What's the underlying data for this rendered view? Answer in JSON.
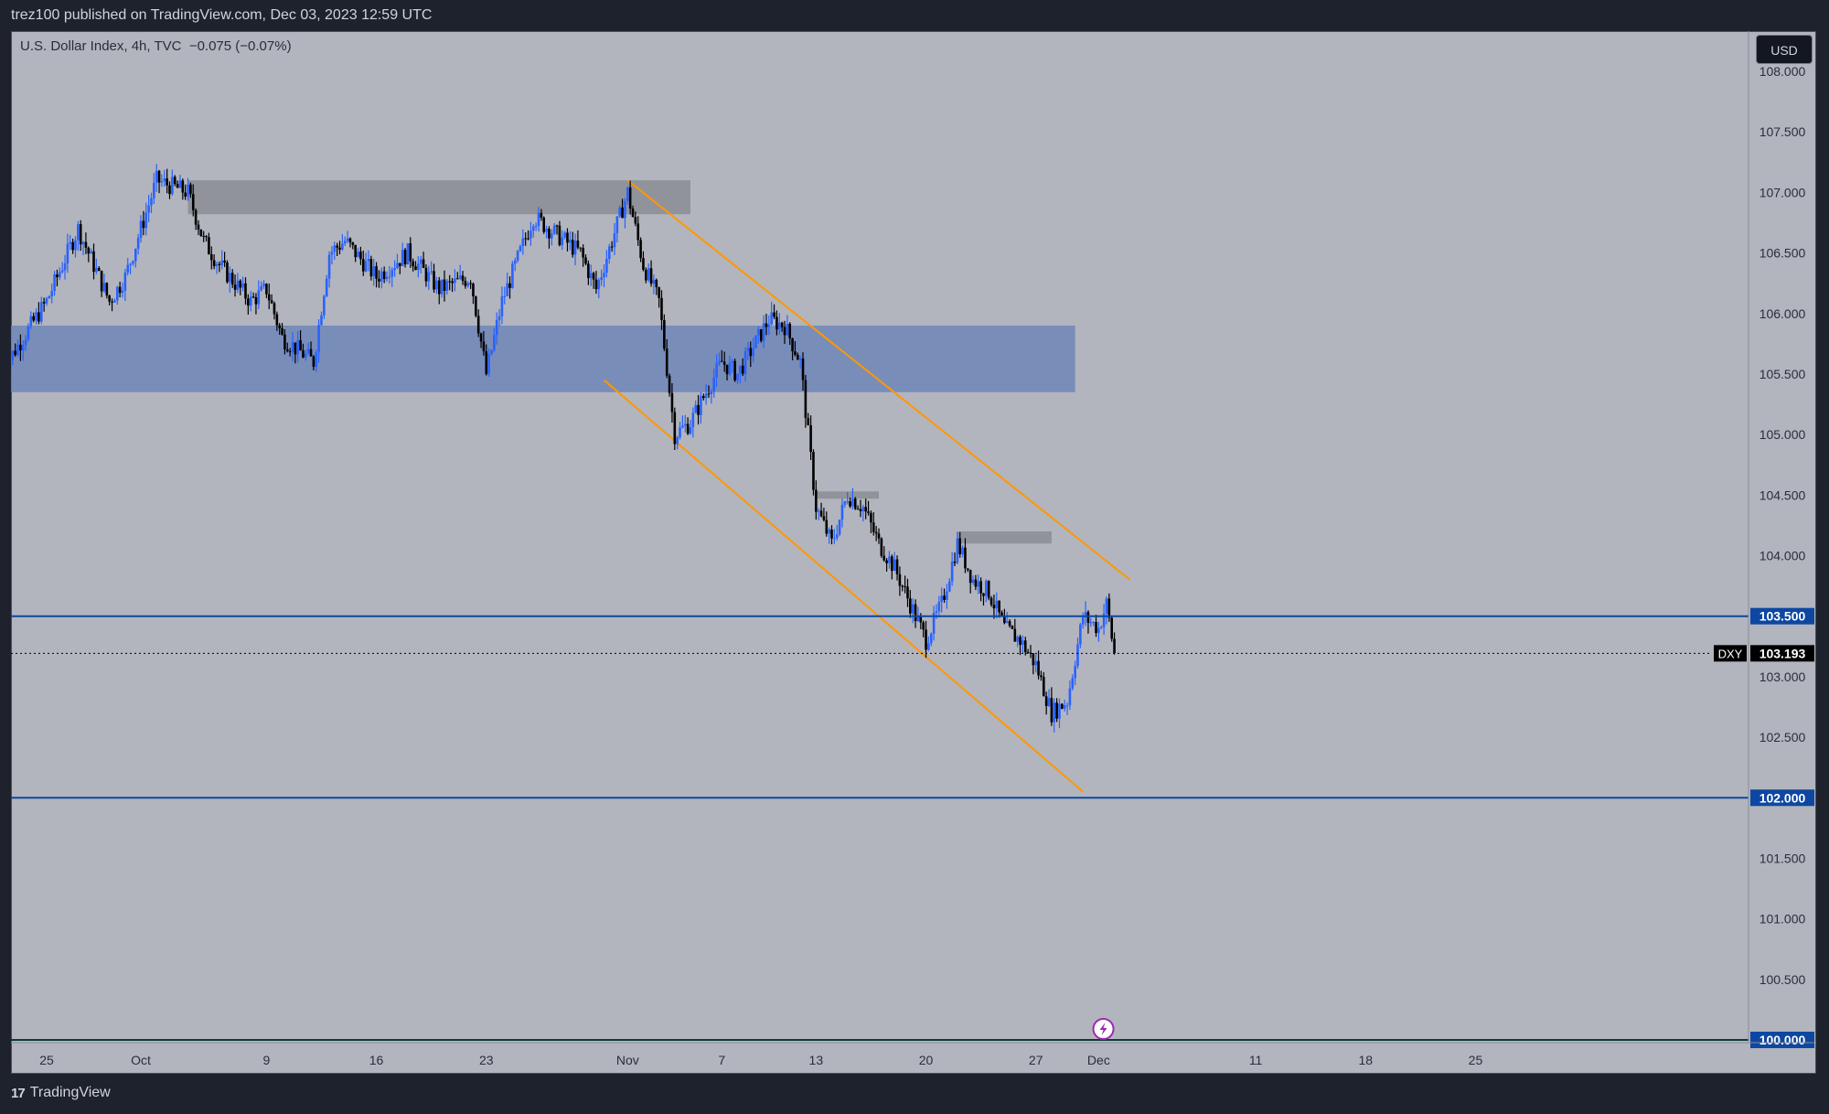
{
  "header": {
    "published_text": "trez100 published on TradingView.com, Dec 03, 2023 12:59 UTC"
  },
  "legend": {
    "symbol_line": "U.S. Dollar Index, 4h, TVC",
    "change": "−0.075 (−0.07%)"
  },
  "currency_button": "USD",
  "footer": {
    "brand": "TradingView"
  },
  "colors": {
    "background": "#b2b5be",
    "up_candle": "#2962ff",
    "down_candle": "#000000",
    "horizontal_lines": "#0d47a1",
    "channel": "#ff9800",
    "zone_blue": "#6f86b8",
    "zone_gray": "#8d8f97"
  },
  "chart_data": {
    "type": "candlestick",
    "symbol": "DXY",
    "interval": "4h",
    "ylim": [
      100.0,
      108.0
    ],
    "y_ticks": [
      "108.000",
      "107.500",
      "107.000",
      "106.500",
      "106.000",
      "105.500",
      "105.000",
      "104.500",
      "104.000",
      "103.500",
      "103.000",
      "102.500",
      "102.000",
      "101.500",
      "101.000",
      "100.500",
      "100.000"
    ],
    "x_ticks": [
      {
        "label": "25",
        "day": -6
      },
      {
        "label": "Oct",
        "day": 0
      },
      {
        "label": "9",
        "day": 8
      },
      {
        "label": "16",
        "day": 15
      },
      {
        "label": "23",
        "day": 22
      },
      {
        "label": "Nov",
        "day": 31
      },
      {
        "label": "7",
        "day": 37
      },
      {
        "label": "13",
        "day": 43
      },
      {
        "label": "20",
        "day": 50
      },
      {
        "label": "27",
        "day": 57
      },
      {
        "label": "Dec",
        "day": 61
      },
      {
        "label": "11",
        "day": 71
      },
      {
        "label": "18",
        "day": 78
      },
      {
        "label": "25",
        "day": 85
      }
    ],
    "price_path": [
      {
        "day": -9,
        "price": 105.5
      },
      {
        "day": -6,
        "price": 106.1
      },
      {
        "day": -4,
        "price": 106.7
      },
      {
        "day": -2,
        "price": 106.1
      },
      {
        "day": -1,
        "price": 106.3
      },
      {
        "day": 1,
        "price": 107.1
      },
      {
        "day": 3,
        "price": 107.0
      },
      {
        "day": 4,
        "price": 106.6
      },
      {
        "day": 5,
        "price": 106.4
      },
      {
        "day": 7,
        "price": 106.1
      },
      {
        "day": 8,
        "price": 106.2
      },
      {
        "day": 9,
        "price": 105.8
      },
      {
        "day": 11,
        "price": 105.6
      },
      {
        "day": 12,
        "price": 106.5
      },
      {
        "day": 13,
        "price": 106.6
      },
      {
        "day": 15,
        "price": 106.3
      },
      {
        "day": 17,
        "price": 106.5
      },
      {
        "day": 19,
        "price": 106.2
      },
      {
        "day": 21,
        "price": 106.3
      },
      {
        "day": 22,
        "price": 105.5
      },
      {
        "day": 23,
        "price": 106.1
      },
      {
        "day": 25,
        "price": 106.8
      },
      {
        "day": 27,
        "price": 106.6
      },
      {
        "day": 28,
        "price": 106.5
      },
      {
        "day": 29,
        "price": 106.2
      },
      {
        "day": 30,
        "price": 106.6
      },
      {
        "day": 31,
        "price": 107.0
      },
      {
        "day": 32,
        "price": 106.4
      },
      {
        "day": 33,
        "price": 106.1
      },
      {
        "day": 34,
        "price": 105.0
      },
      {
        "day": 35,
        "price": 105.1
      },
      {
        "day": 37,
        "price": 105.6
      },
      {
        "day": 38,
        "price": 105.5
      },
      {
        "day": 40,
        "price": 105.95
      },
      {
        "day": 41,
        "price": 105.9
      },
      {
        "day": 42,
        "price": 105.6
      },
      {
        "day": 43,
        "price": 104.4
      },
      {
        "day": 44,
        "price": 104.1
      },
      {
        "day": 45,
        "price": 104.5
      },
      {
        "day": 46,
        "price": 104.4
      },
      {
        "day": 47,
        "price": 104.1
      },
      {
        "day": 48,
        "price": 103.9
      },
      {
        "day": 49,
        "price": 103.6
      },
      {
        "day": 50,
        "price": 103.3
      },
      {
        "day": 51,
        "price": 103.6
      },
      {
        "day": 52,
        "price": 104.1
      },
      {
        "day": 53,
        "price": 103.8
      },
      {
        "day": 54,
        "price": 103.7
      },
      {
        "day": 55,
        "price": 103.4
      },
      {
        "day": 56,
        "price": 103.3
      },
      {
        "day": 57,
        "price": 103.1
      },
      {
        "day": 58,
        "price": 102.7
      },
      {
        "day": 59,
        "price": 102.8
      },
      {
        "day": 60,
        "price": 103.5
      },
      {
        "day": 61,
        "price": 103.4
      },
      {
        "day": 61.5,
        "price": 103.6
      },
      {
        "day": 62,
        "price": 103.19
      }
    ],
    "zones": [
      {
        "name": "supply-zone",
        "day_from": 3,
        "day_to": 35,
        "low": 106.82,
        "high": 107.1,
        "color": "gray"
      },
      {
        "name": "range-zone",
        "day_from": -9,
        "day_to": 59.5,
        "low": 105.35,
        "high": 105.9,
        "color": "blue"
      },
      {
        "name": "small-zone-1",
        "day_from": 43,
        "day_to": 47,
        "low": 104.47,
        "high": 104.53,
        "color": "gray"
      },
      {
        "name": "small-zone-2",
        "day_from": 52,
        "day_to": 58,
        "low": 104.1,
        "high": 104.2,
        "color": "gray"
      }
    ],
    "channel": {
      "upper": [
        {
          "day": 31,
          "price": 107.1
        },
        {
          "day": 63,
          "price": 103.8
        }
      ],
      "lower": [
        {
          "day": 29.5,
          "price": 105.45
        },
        {
          "day": 60,
          "price": 102.05
        }
      ]
    },
    "horizontal_levels": [
      {
        "label": "103.500",
        "price": 103.5,
        "style": "solid"
      },
      {
        "label": "102.000",
        "price": 102.0,
        "style": "solid"
      },
      {
        "label": "100.000",
        "price": 100.0,
        "style": "solid"
      }
    ],
    "last_price": {
      "symbol": "DXY",
      "label": "103.193",
      "price": 103.193
    }
  }
}
